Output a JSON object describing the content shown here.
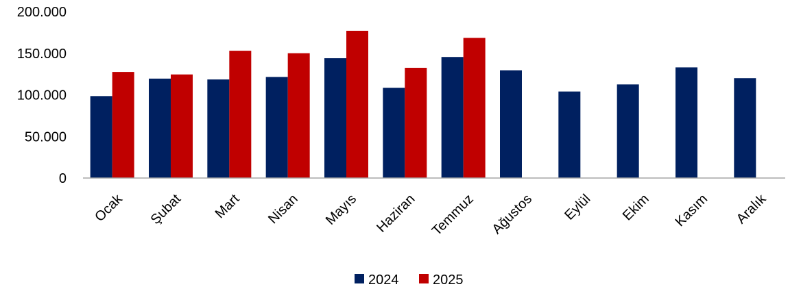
{
  "chart_data": {
    "type": "bar",
    "categories": [
      "Ocak",
      "Şubat",
      "Mart",
      "Nisan",
      "Mayıs",
      "Haziran",
      "Temmuz",
      "Ağustos",
      "Eylül",
      "Ekim",
      "Kasım",
      "Aralık"
    ],
    "series": [
      {
        "name": "2024",
        "color": "#002060",
        "values": [
          98500,
          119500,
          118500,
          121500,
          144000,
          108500,
          145500,
          129500,
          104000,
          112500,
          133000,
          120000
        ]
      },
      {
        "name": "2025",
        "color": "#C00000",
        "values": [
          127500,
          124500,
          153000,
          150000,
          177000,
          132500,
          168500,
          null,
          null,
          null,
          null,
          null
        ]
      }
    ],
    "ylim": [
      0,
      200000
    ],
    "yticks": [
      {
        "value": 0,
        "label": "0"
      },
      {
        "value": 50000,
        "label": "50.000"
      },
      {
        "value": 100000,
        "label": "100.000"
      },
      {
        "value": 150000,
        "label": "150.000"
      },
      {
        "value": 200000,
        "label": "200.000"
      }
    ],
    "grid": false,
    "legend": "bottom"
  }
}
